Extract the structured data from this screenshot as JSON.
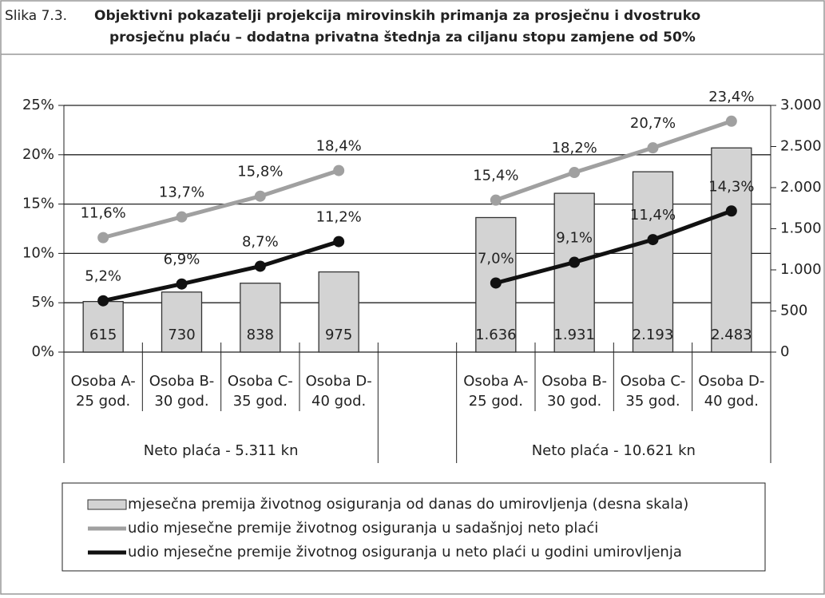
{
  "header": {
    "label": "Slika 7.3.",
    "title": [
      "Objektivni pokazatelji projekcija mirovinskih primanja za prosječnu i dvostruko",
      "prosječnu plaću – dodatna privatna štednja za ciljanu stopu zamjene od 50%"
    ]
  },
  "chart_data": {
    "type": "bar_line",
    "categories": [
      [
        "Osoba A-",
        "25 god."
      ],
      [
        "Osoba B-",
        "30 god."
      ],
      [
        "Osoba C-",
        "35 god."
      ],
      [
        "Osoba D-",
        "40 god."
      ],
      null,
      [
        "Osoba A-",
        "25 god."
      ],
      [
        "Osoba B-",
        "30 god."
      ],
      [
        "Osoba C-",
        "35 god."
      ],
      [
        "Osoba D-",
        "40 god."
      ]
    ],
    "groups": [
      "Neto plaća - 5.311 kn",
      "Neto plaća - 10.621 kn"
    ],
    "ylim": [
      0,
      25
    ],
    "yticks": [
      {
        "value": 0,
        "label": "0%"
      },
      {
        "value": 5,
        "label": "5%"
      },
      {
        "value": 10,
        "label": "10%"
      },
      {
        "value": 15,
        "label": "15%"
      },
      {
        "value": 20,
        "label": "20%"
      },
      {
        "value": 25,
        "label": "25%"
      }
    ],
    "y2lim": [
      0,
      3000
    ],
    "y2ticks": [
      0,
      500,
      {
        "value": 1000,
        "label": "1.000"
      },
      {
        "value": 1500,
        "label": "1.500"
      },
      {
        "value": 2000,
        "label": "2.000"
      },
      {
        "value": 2500,
        "label": "2.500"
      },
      {
        "value": 3000,
        "label": "3.000"
      }
    ],
    "grid": true,
    "series": [
      {
        "name": "mjesečna premija životnog osiguranja od danas do umirovljenja (desna skala)",
        "kind": "bar",
        "axis": "y2",
        "color": "#d3d3d3",
        "values": [
          615,
          730,
          838,
          975,
          null,
          1636,
          1931,
          2193,
          2483
        ],
        "value_labels": [
          "615",
          "730",
          "838",
          "975",
          null,
          "1.636",
          "1.931",
          "2.193",
          "2.483"
        ]
      },
      {
        "name": "udio mjesečne premije životnog osiguranja u sadašnjoj neto plaći",
        "kind": "line",
        "color": "#a0a0a0",
        "values": [
          11.6,
          13.7,
          15.8,
          18.4,
          null,
          15.4,
          18.2,
          20.7,
          23.4
        ],
        "value_labels": [
          "11,6%",
          "13,7%",
          "15,8%",
          "18,4%",
          null,
          "15,4%",
          "18,2%",
          "20,7%",
          "23,4%"
        ]
      },
      {
        "name": "udio mjesečne premije životnog osiguranja u neto plaći u godini umirovljenja",
        "kind": "line",
        "color": "#111111",
        "values": [
          5.2,
          6.9,
          8.7,
          11.2,
          null,
          7.0,
          9.1,
          11.4,
          14.3
        ],
        "value_labels": [
          "5,2%",
          "6,9%",
          "8,7%",
          "11,2%",
          null,
          "7,0%",
          "9,1%",
          "11,4%",
          "14,3%"
        ]
      }
    ]
  }
}
